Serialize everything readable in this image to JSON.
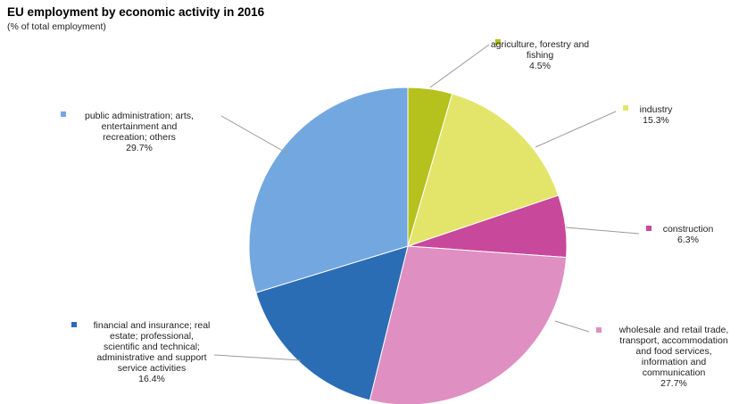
{
  "chart_data": {
    "type": "pie",
    "title": "EU employment by economic activity in 2016",
    "subtitle": "(% of total employment)",
    "slices": [
      {
        "label_lines": [
          "agriculture, forestry and",
          "fishing"
        ],
        "value_label": "4.5%",
        "value": 4.5,
        "color": "#b5c21e"
      },
      {
        "label_lines": [
          "industry"
        ],
        "value_label": "15.3%",
        "value": 15.3,
        "color": "#e3e56b"
      },
      {
        "label_lines": [
          "construction"
        ],
        "value_label": "6.3%",
        "value": 6.3,
        "color": "#c8489b"
      },
      {
        "label_lines": [
          "wholesale and retail trade,",
          "transport, accommodation",
          "and food services,",
          "information and",
          "communication"
        ],
        "value_label": "27.7%",
        "value": 27.7,
        "color": "#df8fc2"
      },
      {
        "label_lines": [
          "financial and insurance; real",
          "estate; professional,",
          "scientific and technical;",
          "administrative and support",
          "service activities"
        ],
        "value_label": "16.4%",
        "value": 16.4,
        "color": "#2a6db5"
      },
      {
        "label_lines": [
          "public administration; arts,",
          "entertainment and",
          "recreation; others"
        ],
        "value_label": "29.7%",
        "value": 29.7,
        "color": "#73a7df"
      }
    ]
  }
}
